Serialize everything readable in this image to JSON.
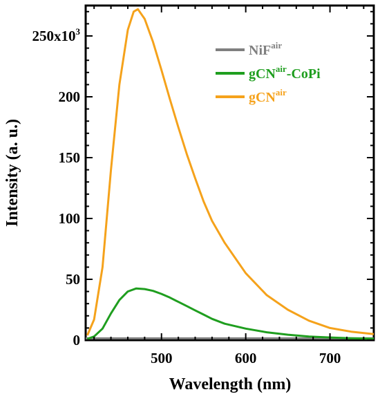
{
  "chart_data": {
    "type": "line",
    "xlabel": "Wavelength (nm)",
    "ylabel": "Intensity (a. u.)",
    "xlim": [
      410,
      752
    ],
    "ylim": [
      0,
      275000
    ],
    "x_ticks": [
      500,
      600,
      700
    ],
    "y_ticks": [
      {
        "value": 0,
        "label": "0"
      },
      {
        "value": 50000,
        "label": "50"
      },
      {
        "value": 100000,
        "label": "100"
      },
      {
        "value": 150000,
        "label": "150"
      },
      {
        "value": 200000,
        "label": "200"
      },
      {
        "value": 250000,
        "label": "250x10",
        "superscript": "3"
      }
    ],
    "grid": false,
    "legend_position": "top-right",
    "series": [
      {
        "name": "NiF",
        "name_sup": "air",
        "name_suffix": "",
        "color": "#7f7f7f",
        "x": [
          410,
          450,
          500,
          550,
          600,
          650,
          700,
          752
        ],
        "y": [
          1500,
          1500,
          1500,
          1500,
          1500,
          1500,
          1500,
          1500
        ]
      },
      {
        "name": "gCN",
        "name_sup": "air",
        "name_suffix": "-CoPi",
        "color": "#1f9e1f",
        "x": [
          412,
          420,
          430,
          440,
          450,
          460,
          470,
          480,
          490,
          500,
          510,
          520,
          530,
          540,
          550,
          560,
          575,
          600,
          625,
          650,
          675,
          700,
          725,
          752
        ],
        "y": [
          1000,
          3000,
          9500,
          22000,
          33000,
          40000,
          42500,
          42000,
          40500,
          38000,
          35000,
          31500,
          28000,
          24500,
          21000,
          17500,
          13500,
          9500,
          6500,
          4500,
          3000,
          2200,
          1600,
          1200
        ]
      },
      {
        "name": "gCN",
        "name_sup": "air",
        "name_suffix": "",
        "color": "#f5a21b",
        "x": [
          412,
          420,
          430,
          440,
          450,
          460,
          467,
          472,
          480,
          490,
          500,
          510,
          520,
          530,
          540,
          550,
          560,
          575,
          600,
          625,
          650,
          675,
          700,
          725,
          752
        ],
        "y": [
          4000,
          17000,
          60000,
          140000,
          210000,
          255000,
          270000,
          272000,
          264000,
          245000,
          222000,
          198000,
          175000,
          153000,
          133000,
          114000,
          98000,
          80000,
          55000,
          37000,
          25000,
          16000,
          10000,
          7000,
          5000
        ]
      }
    ]
  }
}
